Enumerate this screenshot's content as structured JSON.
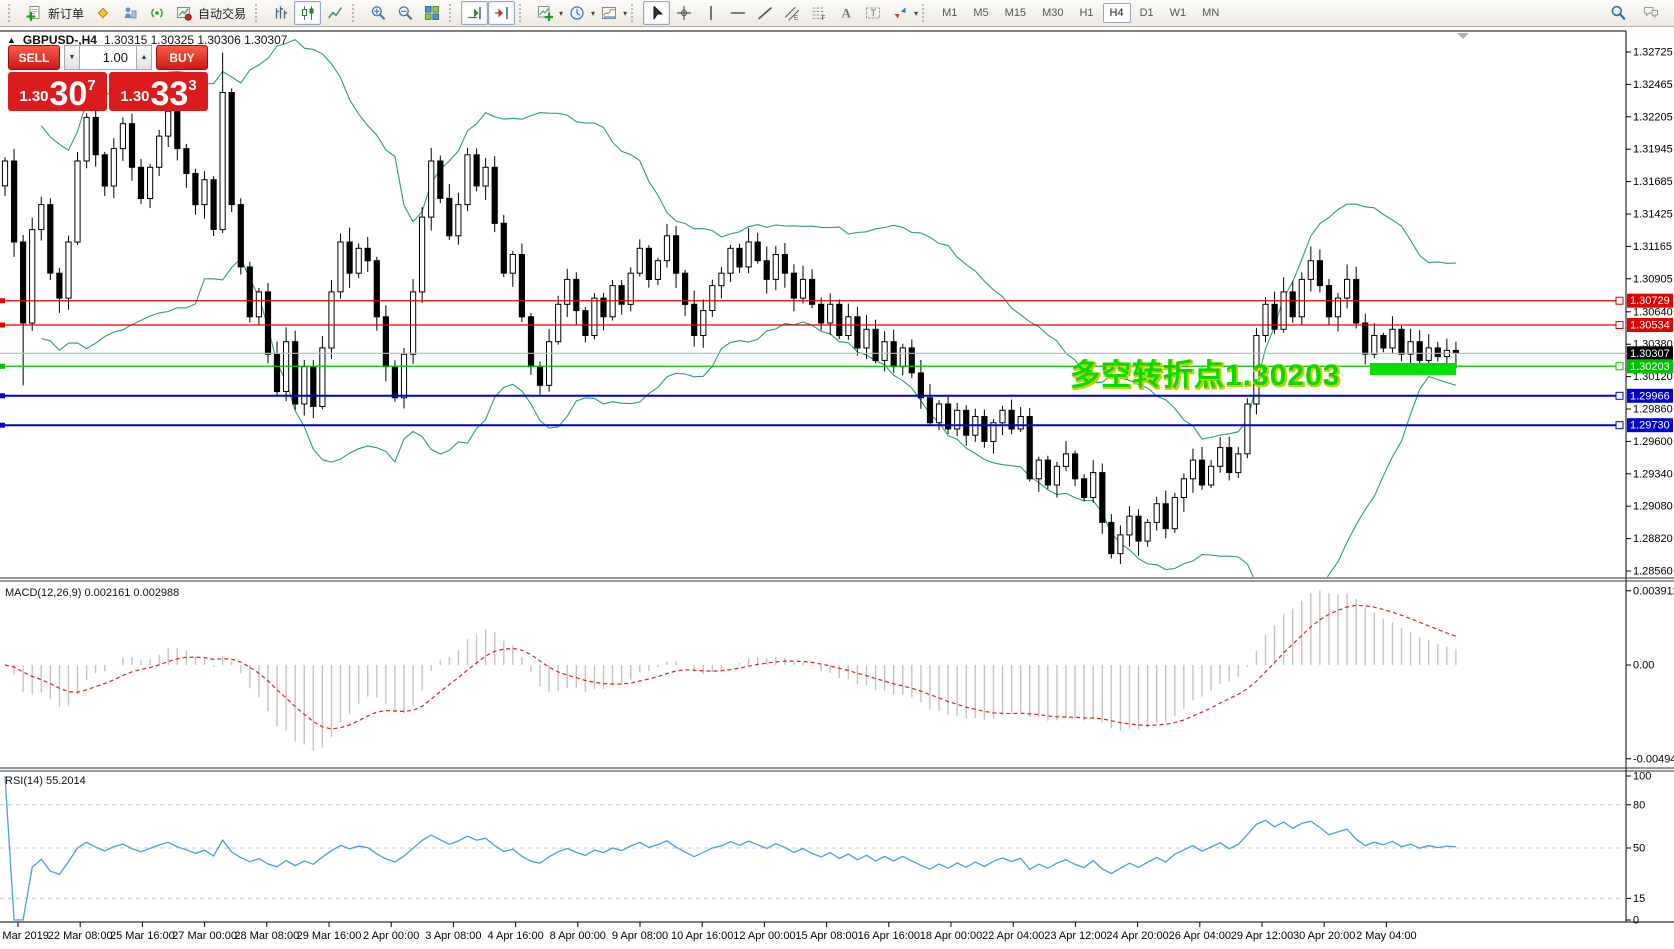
{
  "toolbar": {
    "groups": [
      {
        "items": [
          {
            "icon": "new-order",
            "label": "新订单"
          },
          {
            "icon": "market-watch"
          },
          {
            "icon": "data-window"
          },
          {
            "icon": "alerts"
          },
          {
            "icon": "autotrade",
            "label": "自动交易"
          }
        ]
      },
      {
        "items": [
          {
            "icon": "bar-chart"
          },
          {
            "icon": "candle-chart",
            "active": true
          },
          {
            "icon": "line-chart"
          }
        ]
      },
      {
        "items": [
          {
            "icon": "zoom-in"
          },
          {
            "icon": "zoom-out"
          },
          {
            "icon": "tile-windows"
          }
        ]
      },
      {
        "items": [
          {
            "icon": "autoscroll",
            "active": true
          },
          {
            "icon": "chart-shift",
            "active": true
          }
        ]
      },
      {
        "items": [
          {
            "icon": "indicators",
            "caret": true
          },
          {
            "icon": "periods",
            "caret": true
          },
          {
            "icon": "templates",
            "caret": true
          }
        ]
      },
      {
        "items": [
          {
            "icon": "cursor",
            "active": true
          },
          {
            "icon": "crosshair"
          },
          {
            "icon": "vertical-line"
          },
          {
            "icon": "horizontal-line"
          },
          {
            "icon": "trendline"
          },
          {
            "icon": "channel"
          },
          {
            "icon": "fibonacci"
          },
          {
            "icon": "text"
          },
          {
            "icon": "text-label"
          },
          {
            "icon": "arrows",
            "caret": true
          }
        ]
      }
    ],
    "timeframes": [
      {
        "label": "M1"
      },
      {
        "label": "M5"
      },
      {
        "label": "M15"
      },
      {
        "label": "M30"
      },
      {
        "label": "H1"
      },
      {
        "label": "H4",
        "active": true
      },
      {
        "label": "D1"
      },
      {
        "label": "W1"
      },
      {
        "label": "MN"
      }
    ],
    "right_icons": [
      {
        "icon": "search"
      },
      {
        "icon": "chat"
      }
    ]
  },
  "chart": {
    "title": {
      "collapse_icon": "▲",
      "symbol": "GBPUSD-,H4",
      "ohlc": "1.30315 1.30325 1.30306 1.30307"
    },
    "one_click": {
      "sell_label": "SELL",
      "buy_label": "BUY",
      "volume": "1.00",
      "spin_down": "▼",
      "spin_up": "▲",
      "sell_price": {
        "small": "1.30",
        "big": "30",
        "sup": "7"
      },
      "buy_price": {
        "small": "1.30",
        "big": "33",
        "sup": "3"
      }
    },
    "annotation": {
      "text": "多空转折点1.30203",
      "color": "#00db00",
      "shadow": "#cfcf00"
    }
  },
  "chart_data": {
    "type": "candlestick",
    "symbol": "GBPUSD-,H4",
    "timeframe": "H4",
    "last_ohlc": {
      "open": 1.30315,
      "high": 1.30325,
      "low": 1.30306,
      "close": 1.30307
    },
    "y_ticks": [
      "1.32725",
      "1.32465",
      "1.32205",
      "1.31945",
      "1.31685",
      "1.31425",
      "1.31165",
      "1.30905",
      "1.30640",
      "1.30380",
      "1.30120",
      "1.29860",
      "1.29600",
      "1.29340",
      "1.29080",
      "1.28820",
      "1.28560"
    ],
    "x_labels": [
      "21 Mar 2019",
      "22 Mar 08:00",
      "25 Mar 16:00",
      "27 Mar 00:00",
      "28 Mar 08:00",
      "29 Mar 16:00",
      "2 Apr 00:00",
      "3 Apr 08:00",
      "4 Apr 16:00",
      "8 Apr 00:00",
      "9 Apr 08:00",
      "10 Apr 16:00",
      "12 Apr 00:00",
      "15 Apr 08:00",
      "16 Apr 16:00",
      "18 Apr 00:00",
      "22 Apr 04:00",
      "23 Apr 12:00",
      "24 Apr 20:00",
      "26 Apr 04:00",
      "29 Apr 12:00",
      "30 Apr 20:00",
      "2 May 04:00"
    ],
    "closes": [
      1.3185,
      1.312,
      1.3055,
      1.313,
      1.315,
      1.3095,
      1.3075,
      1.312,
      1.3185,
      1.322,
      1.319,
      1.3165,
      1.3195,
      1.3215,
      1.318,
      1.3155,
      1.318,
      1.3205,
      1.3225,
      1.3195,
      1.3175,
      1.315,
      1.317,
      1.313,
      1.324,
      1.315,
      1.31,
      1.306,
      1.308,
      1.303,
      1.3,
      1.304,
      1.299,
      1.302,
      1.2988,
      1.3035,
      1.308,
      1.312,
      1.3095,
      1.3115,
      1.3105,
      1.306,
      1.302,
      1.2995,
      1.303,
      1.308,
      1.314,
      1.3185,
      1.3155,
      1.3125,
      1.315,
      1.319,
      1.3165,
      1.318,
      1.3135,
      1.3095,
      1.311,
      1.306,
      1.302,
      1.3005,
      1.304,
      1.307,
      1.309,
      1.3065,
      1.3045,
      1.3075,
      1.306,
      1.3085,
      1.307,
      1.3095,
      1.3115,
      1.309,
      1.3105,
      1.3125,
      1.3095,
      1.307,
      1.3045,
      1.3065,
      1.3085,
      1.3095,
      1.3115,
      1.31,
      1.312,
      1.3105,
      1.309,
      1.311,
      1.3095,
      1.3075,
      1.309,
      1.307,
      1.3055,
      1.307,
      1.3045,
      1.306,
      1.3035,
      1.305,
      1.3025,
      1.304,
      1.302,
      1.3035,
      1.3015,
      1.2995,
      1.2975,
      1.299,
      1.297,
      1.2985,
      1.2965,
      1.298,
      1.296,
      1.2975,
      1.2985,
      1.297,
      1.298,
      1.293,
      1.2945,
      1.2925,
      1.294,
      1.295,
      1.293,
      1.2915,
      1.2935,
      1.2895,
      1.287,
      1.2885,
      1.29,
      1.288,
      1.2895,
      1.291,
      1.289,
      1.2915,
      1.293,
      1.2945,
      1.2925,
      1.294,
      1.2955,
      1.2935,
      1.295,
      1.299,
      1.3045,
      1.307,
      1.305,
      1.308,
      1.306,
      1.309,
      1.3105,
      1.3085,
      1.306,
      1.3075,
      1.309,
      1.3055,
      1.303,
      1.3045,
      1.3035,
      1.305,
      1.303,
      1.304,
      1.3025,
      1.3035,
      1.3028,
      1.3033,
      1.30307
    ],
    "first_open": 1.3165,
    "extremes": {
      "spike_high": 1.3272,
      "bottom_low": 1.2866,
      "early_spike_low_index": 2,
      "early_spike_low": 1.3005
    },
    "bollinger": {
      "period": 20,
      "deviation": 2,
      "color": "#2e9e68"
    },
    "levels": [
      {
        "price": 1.30729,
        "color": "#e00000",
        "width": 1.2
      },
      {
        "price": 1.30534,
        "color": "#e00000",
        "width": 1.2
      },
      {
        "price": 1.30203,
        "color": "#00c000",
        "width": 1.2
      },
      {
        "price": 1.29966,
        "color": "#0000cc",
        "width": 2
      },
      {
        "price": 1.2973,
        "color": "#0000cc",
        "width": 2
      }
    ],
    "current_price": {
      "label": "1.30307",
      "value": 1.30307,
      "line_color": "#b8b8b8",
      "badge_bg": "#000000"
    },
    "badges": [
      {
        "label": "1.30729",
        "value": 1.30729,
        "bg": "#e00000"
      },
      {
        "label": "1.30534",
        "value": 1.30534,
        "bg": "#e00000"
      },
      {
        "label": "1.30307",
        "value": 1.30307,
        "bg": "#000000"
      },
      {
        "label": "1.30203",
        "value": 1.30203,
        "bg": "#00c000"
      },
      {
        "label": "1.29966",
        "value": 1.29966,
        "bg": "#0000cc"
      },
      {
        "label": "1.29730",
        "value": 1.2973,
        "bg": "#0000cc"
      }
    ],
    "highlight_rect": {
      "x": 1370,
      "y": 363,
      "width": 86,
      "height": 12,
      "color": "#00e000"
    },
    "macd": {
      "label": "MACD(12,26,9) 0.002161 0.002988",
      "params": [
        12,
        26,
        9
      ],
      "current_values": [
        0.002161,
        0.002988
      ],
      "ticks": [
        {
          "label": "0.003912",
          "value": 0.003912
        },
        {
          "label": "0.00",
          "value": 0
        },
        {
          "label": "-0.004944",
          "value": -0.004944
        }
      ],
      "hist_color": "#c4c4c4",
      "signal_color": "#e02020"
    },
    "rsi": {
      "label": "RSI(14) 55.2014",
      "period": 14,
      "current_value": 55.2014,
      "ticks": [
        {
          "label": "100",
          "value": 100
        },
        {
          "label": "80",
          "value": 80
        },
        {
          "label": "50",
          "value": 50
        },
        {
          "label": "15",
          "value": 15
        },
        {
          "label": "0",
          "value": 0
        }
      ],
      "dashed_levels": [
        80,
        50,
        15
      ],
      "color": "#4a9ce8"
    }
  }
}
